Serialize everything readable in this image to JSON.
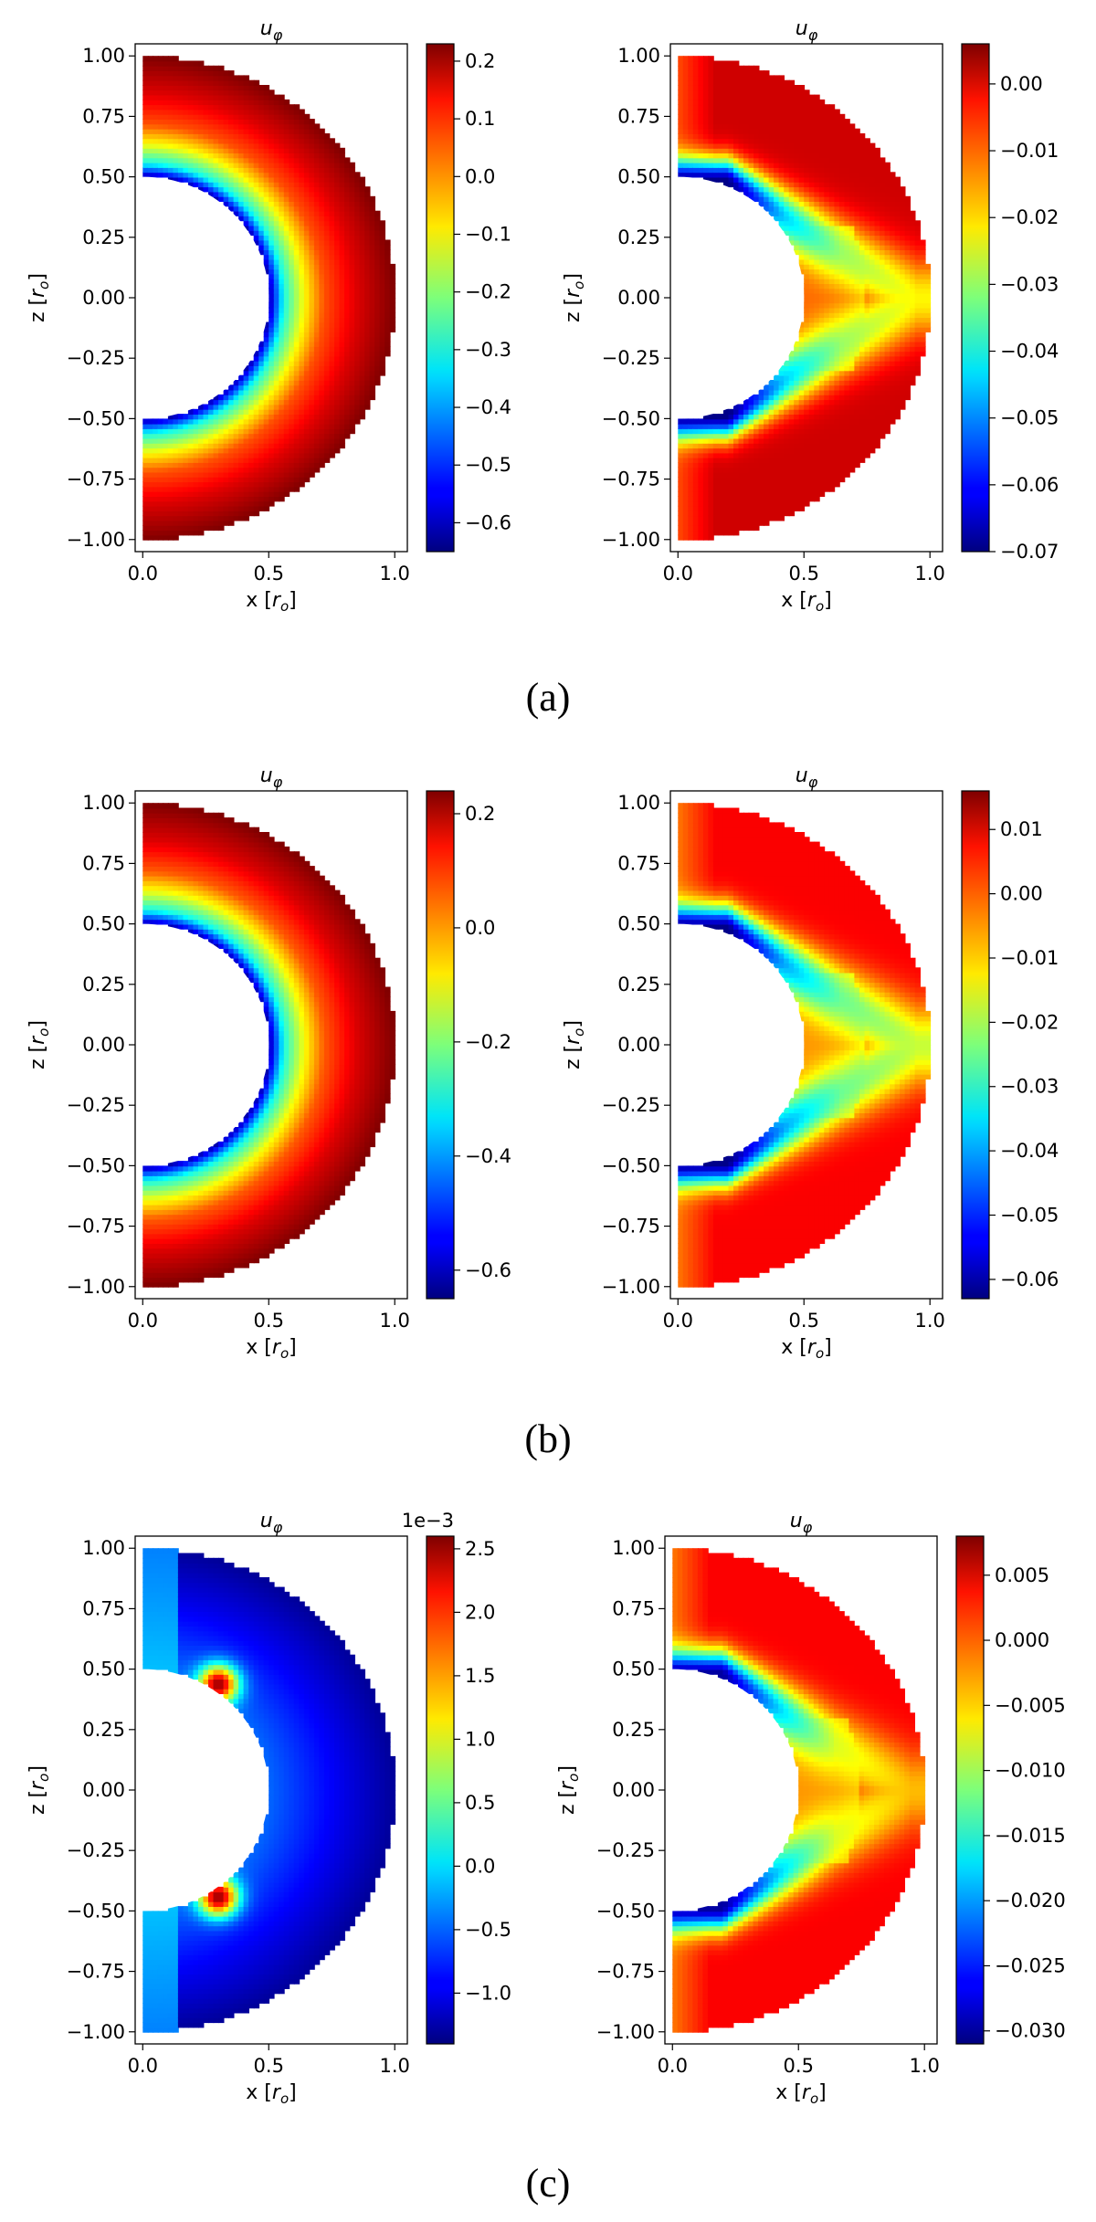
{
  "chart_data": [
    {
      "type": "heatmap",
      "panel": "a-left",
      "title": "u_φ",
      "xlabel": "x [r_o]",
      "ylabel": "z [r_o]",
      "xlim": [
        -0.03,
        1.05
      ],
      "ylim": [
        -1.05,
        1.05
      ],
      "xticks": [
        "0.0",
        "0.5",
        "1.0"
      ],
      "yticks": [
        "1.00",
        "0.75",
        "0.50",
        "0.25",
        "0.00",
        "−0.25",
        "−0.50",
        "−0.75",
        "−1.00"
      ],
      "colorbar": {
        "min": -0.65,
        "max": 0.23,
        "ticks": [
          0.2,
          0.1,
          0.0,
          -0.1,
          -0.2,
          -0.3,
          -0.4,
          -0.5,
          -0.6
        ],
        "tick_labels": [
          "0.2",
          "0.1",
          "0.0",
          "−0.1",
          "−0.2",
          "−0.3",
          "−0.4",
          "−0.5",
          "−0.6"
        ],
        "offset_label": ""
      },
      "field": {
        "inner_radius": 0.5,
        "outer_radius": 1.0,
        "pattern": "outer_positive",
        "stops": [
          [
            0.5,
            -0.62
          ],
          [
            0.56,
            -0.3
          ],
          [
            0.64,
            -0.1
          ],
          [
            0.72,
            0.05
          ],
          [
            0.85,
            0.15
          ],
          [
            1.0,
            0.23
          ]
        ]
      }
    },
    {
      "type": "heatmap",
      "panel": "a-right",
      "title": "u_φ",
      "xlabel": "x [r_o]",
      "ylabel": "z [r_o]",
      "xlim": [
        -0.03,
        1.05
      ],
      "ylim": [
        -1.05,
        1.05
      ],
      "xticks": [
        "0.0",
        "0.5",
        "1.0"
      ],
      "yticks": [
        "1.00",
        "0.75",
        "0.50",
        "0.25",
        "0.00",
        "−0.25",
        "−0.50",
        "−0.75",
        "−1.00"
      ],
      "colorbar": {
        "min": -0.07,
        "max": 0.006,
        "ticks": [
          0.0,
          -0.01,
          -0.02,
          -0.03,
          -0.04,
          -0.05,
          -0.06,
          -0.07
        ],
        "tick_labels": [
          "0.00",
          "−0.01",
          "−0.02",
          "−0.03",
          "−0.04",
          "−0.05",
          "−0.06",
          "−0.07"
        ],
        "offset_label": ""
      },
      "field": {
        "inner_radius": 0.5,
        "outer_radius": 1.0,
        "pattern": "v_band",
        "stops": [
          [
            0.0,
            -0.07
          ],
          [
            0.3,
            -0.045
          ],
          [
            0.6,
            -0.03
          ],
          [
            1.0,
            -0.022
          ]
        ]
      }
    },
    {
      "type": "heatmap",
      "panel": "b-left",
      "title": "u_φ",
      "xlabel": "x [r_o]",
      "ylabel": "z [r_o]",
      "xlim": [
        -0.03,
        1.05
      ],
      "ylim": [
        -1.05,
        1.05
      ],
      "xticks": [
        "0.0",
        "0.5",
        "1.0"
      ],
      "yticks": [
        "1.00",
        "0.75",
        "0.50",
        "0.25",
        "0.00",
        "−0.25",
        "−0.50",
        "−0.75",
        "−1.00"
      ],
      "colorbar": {
        "min": -0.65,
        "max": 0.24,
        "ticks": [
          0.2,
          0.0,
          -0.2,
          -0.4,
          -0.6
        ],
        "tick_labels": [
          "0.2",
          "0.0",
          "−0.2",
          "−0.4",
          "−0.6"
        ],
        "offset_label": ""
      },
      "field": {
        "inner_radius": 0.5,
        "outer_radius": 1.0,
        "pattern": "outer_positive",
        "stops": [
          [
            0.5,
            -0.62
          ],
          [
            0.56,
            -0.3
          ],
          [
            0.64,
            -0.1
          ],
          [
            0.72,
            0.05
          ],
          [
            0.85,
            0.16
          ],
          [
            1.0,
            0.24
          ]
        ]
      }
    },
    {
      "type": "heatmap",
      "panel": "b-right",
      "title": "u_φ",
      "xlabel": "x [r_o]",
      "ylabel": "z [r_o]",
      "xlim": [
        -0.03,
        1.05
      ],
      "ylim": [
        -1.05,
        1.05
      ],
      "xticks": [
        "0.0",
        "0.5",
        "1.0"
      ],
      "yticks": [
        "1.00",
        "0.75",
        "0.50",
        "0.25",
        "0.00",
        "−0.25",
        "−0.50",
        "−0.75",
        "−1.00"
      ],
      "colorbar": {
        "min": -0.063,
        "max": 0.016,
        "ticks": [
          0.01,
          0.0,
          -0.01,
          -0.02,
          -0.03,
          -0.04,
          -0.05,
          -0.06
        ],
        "tick_labels": [
          "0.01",
          "0.00",
          "−0.01",
          "−0.02",
          "−0.03",
          "−0.04",
          "−0.05",
          "−0.06"
        ],
        "offset_label": ""
      },
      "field": {
        "inner_radius": 0.5,
        "outer_radius": 1.0,
        "pattern": "v_band",
        "stops": [
          [
            0.0,
            -0.063
          ],
          [
            0.3,
            -0.04
          ],
          [
            0.6,
            -0.025
          ],
          [
            1.0,
            -0.018
          ]
        ]
      }
    },
    {
      "type": "heatmap",
      "panel": "c-left",
      "title": "u_φ",
      "xlabel": "x [r_o]",
      "ylabel": "z [r_o]",
      "xlim": [
        -0.03,
        1.05
      ],
      "ylim": [
        -1.05,
        1.05
      ],
      "xticks": [
        "0.0",
        "0.5",
        "1.0"
      ],
      "yticks": [
        "1.00",
        "0.75",
        "0.50",
        "0.25",
        "0.00",
        "−0.25",
        "−0.50",
        "−0.75",
        "−1.00"
      ],
      "colorbar": {
        "min": -1.4,
        "max": 2.6,
        "ticks": [
          2.5,
          2.0,
          1.5,
          1.0,
          0.5,
          0.0,
          -0.5,
          -1.0
        ],
        "tick_labels": [
          "2.5",
          "2.0",
          "1.5",
          "1.0",
          "0.5",
          "0.0",
          "−0.5",
          "−1.0"
        ],
        "offset_label": "1e−3"
      },
      "field": {
        "inner_radius": 0.5,
        "outer_radius": 1.0,
        "pattern": "small_residual",
        "stops": [
          [
            0.0,
            -0.5
          ],
          [
            0.6,
            -1.0
          ],
          [
            1.0,
            -1.3
          ]
        ]
      }
    },
    {
      "type": "heatmap",
      "panel": "c-right",
      "title": "u_φ",
      "xlabel": "x [r_o]",
      "ylabel": "z [r_o]",
      "xlim": [
        -0.03,
        1.05
      ],
      "ylim": [
        -1.05,
        1.05
      ],
      "xticks": [
        "0.0",
        "0.5",
        "1.0"
      ],
      "yticks": [
        "1.00",
        "0.75",
        "0.50",
        "0.25",
        "0.00",
        "−0.25",
        "−0.50",
        "−0.75",
        "−1.00"
      ],
      "colorbar": {
        "min": -0.031,
        "max": 0.008,
        "ticks": [
          0.005,
          0.0,
          -0.005,
          -0.01,
          -0.015,
          -0.02,
          -0.025,
          -0.03
        ],
        "tick_labels": [
          "0.005",
          "0.000",
          "−0.005",
          "−0.010",
          "−0.015",
          "−0.020",
          "−0.025",
          "−0.030"
        ],
        "offset_label": ""
      },
      "field": {
        "inner_radius": 0.5,
        "outer_radius": 1.0,
        "pattern": "v_band",
        "stops": [
          [
            0.0,
            -0.03
          ],
          [
            0.3,
            -0.018
          ],
          [
            0.6,
            -0.008
          ],
          [
            1.0,
            -0.004
          ]
        ]
      }
    }
  ],
  "labels": {
    "row_a": "(a)",
    "row_b": "(b)",
    "row_c": "(c)"
  }
}
